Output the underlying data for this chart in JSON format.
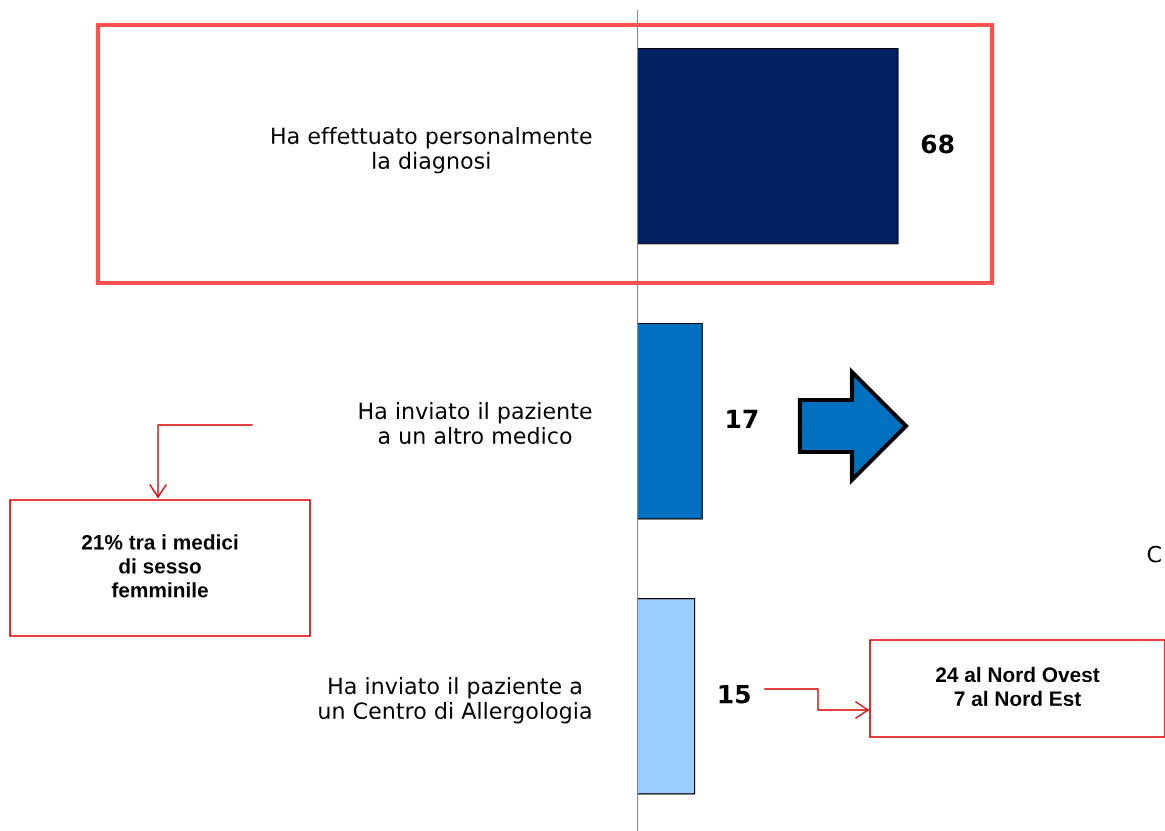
{
  "chart_data": {
    "type": "bar",
    "orientation": "horizontal",
    "data_labels": true,
    "categories": [
      "Ha effettuato personalmente\nla diagnosi",
      "Ha inviato il paziente\na un altro medico",
      "Ha inviato il paziente a\nun Centro di Allergologia"
    ],
    "values": [
      68,
      17,
      15
    ],
    "colors": [
      "#002060",
      "#0070c0",
      "#99ccff"
    ],
    "annotations": [
      "21% tra i medici\ndi sesso\nfemminile",
      "24 al Nord Ovest\n7 al Nord Est",
      "C"
    ]
  }
}
